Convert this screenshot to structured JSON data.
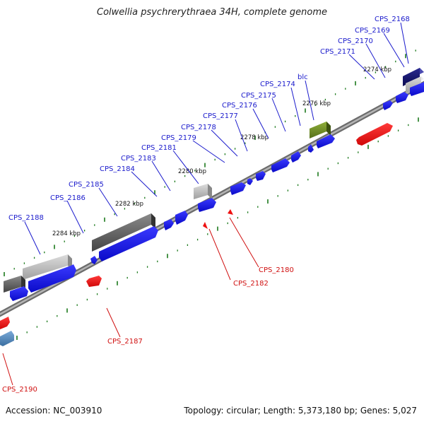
{
  "title": "Colwellia psychrerythraea 34H, complete genome",
  "footer": {
    "accession": "Accession: NC_003910",
    "summary": "Topology: circular; Length: 5,373,180 bp; Genes: 5,027"
  },
  "colors": {
    "forward_gene": "#1010d8",
    "reverse_gene": "#e81010",
    "label_forward": "#1a1acc",
    "label_reverse": "#d01010",
    "backbone": "#8a8a8a",
    "tick": "#1c7a1c"
  },
  "kbp_markers": [
    "2274 kbp",
    "2276 kbp",
    "2278 kbp",
    "2280 kbp",
    "2282 kbp",
    "2284 kbp"
  ],
  "forward_labels": [
    "CPS_2168",
    "CPS_2169",
    "CPS_2170",
    "CPS_2171",
    "blc",
    "CPS_2174",
    "CPS_2175",
    "CPS_2176",
    "CPS_2177",
    "CPS_2178",
    "CPS_2179",
    "CPS_2181",
    "CPS_2183",
    "CPS_2184",
    "CPS_2185",
    "CPS_2186",
    "CPS_2188"
  ],
  "reverse_labels": [
    "CPS_2180",
    "CPS_2182",
    "CPS_2187",
    "CPS_2190"
  ]
}
